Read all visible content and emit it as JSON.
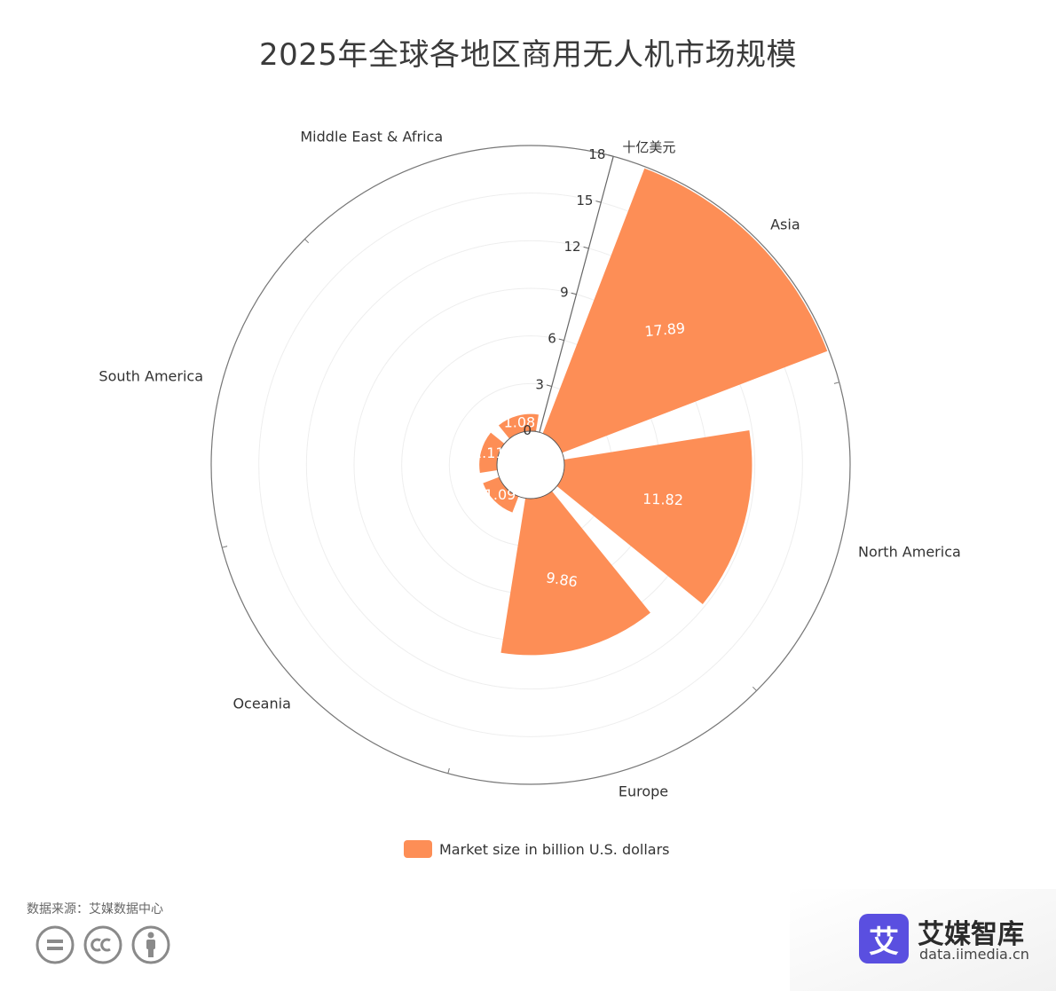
{
  "title": "2025年全球各地区商用无人机市场规模",
  "chart_data": {
    "type": "polar-bar",
    "title": "2025年全球各地区商用无人机市场规模",
    "radial_axis_unit": "十亿美元",
    "radial_ticks": [
      0,
      3,
      6,
      9,
      12,
      15,
      18
    ],
    "radial_range": [
      0,
      18
    ],
    "categories": [
      "Asia",
      "North America",
      "Europe",
      "Oceania",
      "South America",
      "Middle East & Africa"
    ],
    "series": [
      {
        "name": "Market size in billion U.S. dollars",
        "values": [
          17.89,
          11.82,
          9.86,
          1.09,
          1.11,
          1.08
        ],
        "color": "#fd8e56"
      }
    ],
    "data_labels": [
      "17.89",
      "11.82",
      "9.86",
      "1.09",
      "1.11",
      "1.08"
    ],
    "legend_position": "bottom",
    "grid": true
  },
  "legend": {
    "label": "Market size in billion U.S. dollars",
    "color": "#fd8e56"
  },
  "source": "数据来源：艾媒数据中心",
  "license_icons": [
    "equals-icon",
    "cc-icon",
    "person-icon"
  ],
  "logo": {
    "brand": "艾媒智库",
    "url": "data.iimedia.cn",
    "mark": "艾",
    "color": "#5a4fe0"
  }
}
